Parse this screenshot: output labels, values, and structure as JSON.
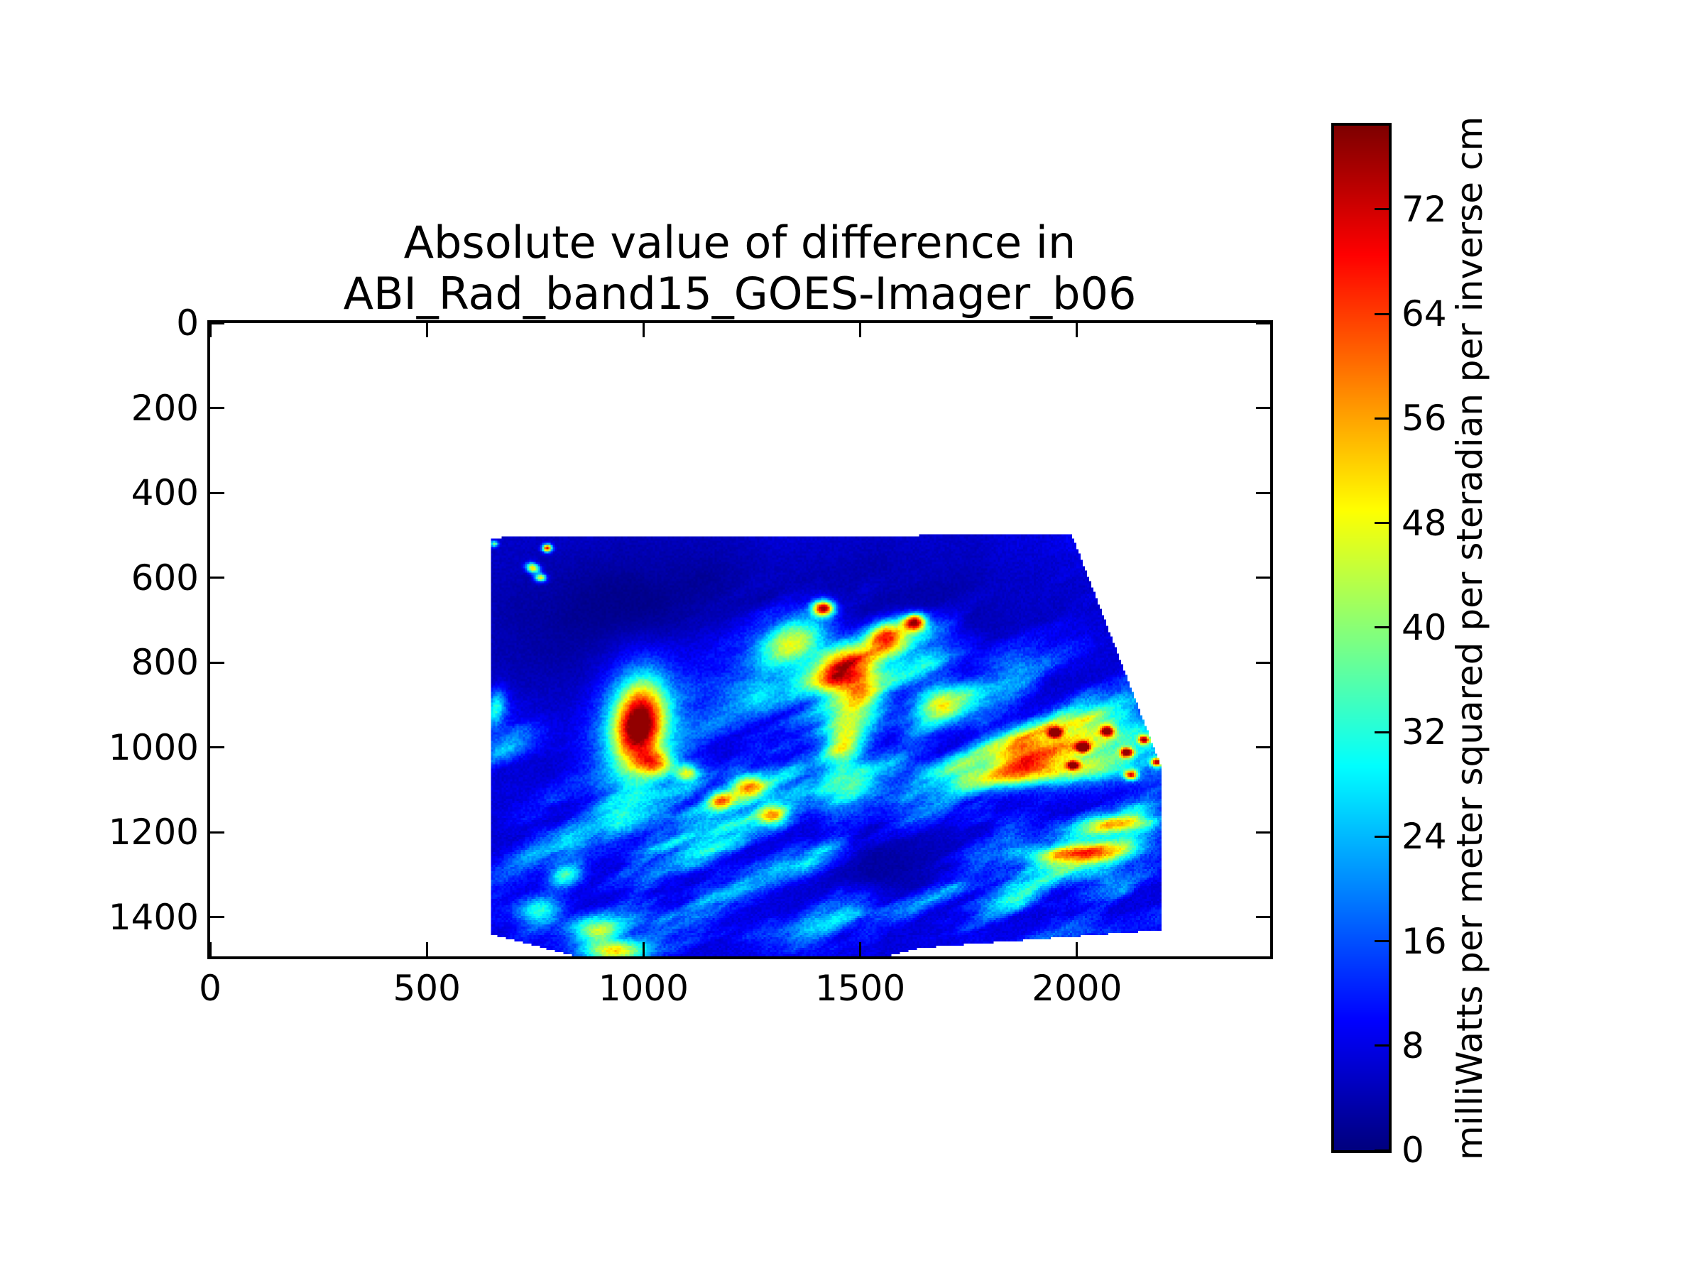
{
  "title": {
    "line1": "Absolute value of difference in",
    "line2": "ABI_Rad_band15_GOES-Imager_b06"
  },
  "chart_data": {
    "type": "heatmap",
    "title": "Absolute value of difference in ABI_Rad_band15_GOES-Imager_b06",
    "xlabel": "",
    "ylabel": "",
    "xlim": [
      0,
      2446
    ],
    "ylim": [
      0,
      1492
    ],
    "x_ticks": [
      0,
      500,
      1000,
      1500,
      2000
    ],
    "y_ticks": [
      0,
      200,
      400,
      600,
      800,
      1000,
      1200,
      1400
    ],
    "grid": false,
    "colormap": "jet",
    "background_color": "#ffffff",
    "colorbar": {
      "label": "milliWatts per meter squared per steradian per inverse cm",
      "ticks": [
        0,
        8,
        16,
        24,
        32,
        40,
        48,
        56,
        64,
        72
      ],
      "vmin": 0,
      "vmax": 78.4,
      "orientation": "vertical"
    },
    "swath_polygon": [
      [
        646,
        505
      ],
      [
        1989,
        498
      ],
      [
        2197,
        1050
      ],
      [
        2196,
        1430
      ],
      [
        1640,
        1472
      ],
      [
        1500,
        1507
      ],
      [
        900,
        1507
      ],
      [
        649,
        1440
      ]
    ],
    "cloud_regions": [
      {
        "x": 1000,
        "y": 1330,
        "rx": 300,
        "ry": 135,
        "rot": -18,
        "w": 0.95
      },
      {
        "x": 1450,
        "y": 1440,
        "rx": 360,
        "ry": 95,
        "rot": -5,
        "w": 0.9
      },
      {
        "x": 1380,
        "y": 1050,
        "rx": 230,
        "ry": 210,
        "rot": -25,
        "w": 0.8
      },
      {
        "x": 1800,
        "y": 1150,
        "rx": 430,
        "ry": 250,
        "rot": -15,
        "w": 0.85
      },
      {
        "x": 2050,
        "y": 1330,
        "rx": 280,
        "ry": 125,
        "rot": -10,
        "w": 0.85
      },
      {
        "x": 1500,
        "y": 790,
        "rx": 280,
        "ry": 170,
        "rot": 8,
        "w": 0.85
      },
      {
        "x": 1950,
        "y": 950,
        "rx": 280,
        "ry": 190,
        "rot": 0,
        "w": 0.7
      },
      {
        "x": 850,
        "y": 1180,
        "rx": 220,
        "ry": 105,
        "rot": -35,
        "w": 0.75
      },
      {
        "x": 2120,
        "y": 620,
        "rx": 170,
        "ry": 95,
        "rot": 20,
        "w": 0.5
      },
      {
        "x": 700,
        "y": 1000,
        "rx": 95,
        "ry": 75,
        "rot": 0,
        "w": 0.6
      },
      {
        "x": 1150,
        "y": 1150,
        "rx": 210,
        "ry": 165,
        "rot": -20,
        "w": 0.7
      }
    ],
    "hotspots": [
      {
        "x": 990,
        "y": 945,
        "rx": 55,
        "ry": 95,
        "rot": 8,
        "amp": 60
      },
      {
        "x": 985,
        "y": 955,
        "rx": 100,
        "ry": 150,
        "rot": 8,
        "amp": 20
      },
      {
        "x": 1030,
        "y": 1040,
        "rx": 40,
        "ry": 30,
        "rot": 0,
        "amp": 30
      },
      {
        "x": 1415,
        "y": 672,
        "rx": 24,
        "ry": 18,
        "rot": 0,
        "amp": 68
      },
      {
        "x": 1345,
        "y": 755,
        "rx": 85,
        "ry": 55,
        "rot": -30,
        "amp": 42
      },
      {
        "x": 1455,
        "y": 820,
        "rx": 75,
        "ry": 48,
        "rot": -40,
        "amp": 38
      },
      {
        "x": 1560,
        "y": 735,
        "rx": 48,
        "ry": 34,
        "rot": -20,
        "amp": 50
      },
      {
        "x": 1625,
        "y": 705,
        "rx": 26,
        "ry": 20,
        "rot": 0,
        "amp": 62
      },
      {
        "x": 1500,
        "y": 900,
        "rx": 55,
        "ry": 75,
        "rot": 10,
        "amp": 30
      },
      {
        "x": 1460,
        "y": 990,
        "rx": 45,
        "ry": 70,
        "rot": 5,
        "amp": 34
      },
      {
        "x": 2040,
        "y": 1000,
        "rx": 150,
        "ry": 75,
        "rot": -8,
        "amp": 26
      },
      {
        "x": 1880,
        "y": 1020,
        "rx": 80,
        "ry": 45,
        "rot": -10,
        "amp": 30
      },
      {
        "x": 1950,
        "y": 965,
        "rx": 16,
        "ry": 12,
        "rot": 0,
        "amp": 58
      },
      {
        "x": 2015,
        "y": 1000,
        "rx": 14,
        "ry": 11,
        "rot": 0,
        "amp": 62
      },
      {
        "x": 2070,
        "y": 962,
        "rx": 15,
        "ry": 12,
        "rot": 0,
        "amp": 56
      },
      {
        "x": 2115,
        "y": 1012,
        "rx": 14,
        "ry": 11,
        "rot": 0,
        "amp": 60
      },
      {
        "x": 2155,
        "y": 982,
        "rx": 13,
        "ry": 10,
        "rot": 0,
        "amp": 55
      },
      {
        "x": 2185,
        "y": 1035,
        "rx": 13,
        "ry": 10,
        "rot": 0,
        "amp": 58
      },
      {
        "x": 1992,
        "y": 1042,
        "rx": 14,
        "ry": 10,
        "rot": 0,
        "amp": 52
      },
      {
        "x": 2125,
        "y": 1065,
        "rx": 15,
        "ry": 11,
        "rot": 0,
        "amp": 56
      },
      {
        "x": 778,
        "y": 530,
        "rx": 11,
        "ry": 9,
        "rot": 0,
        "amp": 64
      },
      {
        "x": 745,
        "y": 577,
        "rx": 15,
        "ry": 11,
        "rot": 20,
        "amp": 50
      },
      {
        "x": 763,
        "y": 600,
        "rx": 13,
        "ry": 9,
        "rot": 0,
        "amp": 44
      },
      {
        "x": 656,
        "y": 520,
        "rx": 9,
        "ry": 7,
        "rot": 0,
        "amp": 34
      },
      {
        "x": 930,
        "y": 1480,
        "rx": 70,
        "ry": 26,
        "rot": 0,
        "amp": 40
      },
      {
        "x": 1990,
        "y": 1248,
        "rx": 115,
        "ry": 20,
        "rot": -4,
        "amp": 38
      },
      {
        "x": 2100,
        "y": 1180,
        "rx": 85,
        "ry": 18,
        "rot": -6,
        "amp": 32
      },
      {
        "x": 1180,
        "y": 1125,
        "rx": 30,
        "ry": 22,
        "rot": 0,
        "amp": 34
      },
      {
        "x": 1240,
        "y": 1090,
        "rx": 38,
        "ry": 28,
        "rot": 0,
        "amp": 36
      },
      {
        "x": 1300,
        "y": 1160,
        "rx": 34,
        "ry": 24,
        "rot": 0,
        "amp": 32
      },
      {
        "x": 1100,
        "y": 1060,
        "rx": 26,
        "ry": 20,
        "rot": 0,
        "amp": 33
      },
      {
        "x": 1690,
        "y": 890,
        "rx": 58,
        "ry": 38,
        "rot": -20,
        "amp": 30
      },
      {
        "x": 660,
        "y": 905,
        "rx": 22,
        "ry": 42,
        "rot": 10,
        "amp": 24
      },
      {
        "x": 820,
        "y": 1300,
        "rx": 40,
        "ry": 28,
        "rot": -20,
        "amp": 28
      },
      {
        "x": 760,
        "y": 1385,
        "rx": 48,
        "ry": 32,
        "rot": -15,
        "amp": 26
      },
      {
        "x": 890,
        "y": 1430,
        "rx": 55,
        "ry": 28,
        "rot": 0,
        "amp": 28
      },
      {
        "x": 1900,
        "y": 1062,
        "rx": 190,
        "ry": 26,
        "rot": -4,
        "amp": 22
      }
    ],
    "dark_pockets": [
      {
        "x": 1150,
        "y": 640,
        "rx": 300,
        "ry": 170,
        "rot": -5,
        "amp": 4.5
      },
      {
        "x": 1680,
        "y": 690,
        "rx": 280,
        "ry": 160,
        "rot": 0,
        "amp": 4
      },
      {
        "x": 1600,
        "y": 1270,
        "rx": 190,
        "ry": 95,
        "rot": -10,
        "amp": 4
      },
      {
        "x": 2260,
        "y": 820,
        "rx": 130,
        "ry": 220,
        "rot": 0,
        "amp": 3
      },
      {
        "x": 900,
        "y": 700,
        "rx": 200,
        "ry": 160,
        "rot": 0,
        "amp": 2.5
      }
    ],
    "texture": {
      "base_offset": 2.2,
      "base_amp_low": 5.5,
      "base_freq_low": 0.0016,
      "base_amp_mid": 3.2,
      "base_freq_mid": 0.006,
      "streak_angle_deg": -24,
      "streak_freq_u": 0.0042,
      "streak_freq_v": 0.0151,
      "streak_octaves": 4,
      "cloud_amp": 42,
      "cloud_threshold": 0.3,
      "cloud_exponent": 1.4
    },
    "key_colors": {
      "low": "#000080",
      "mid_blue": "#0040ff",
      "cyan": "#00e0ff",
      "yellow": "#f8f800",
      "orange": "#ff7800",
      "red": "#e81000",
      "high": "#800000"
    }
  }
}
